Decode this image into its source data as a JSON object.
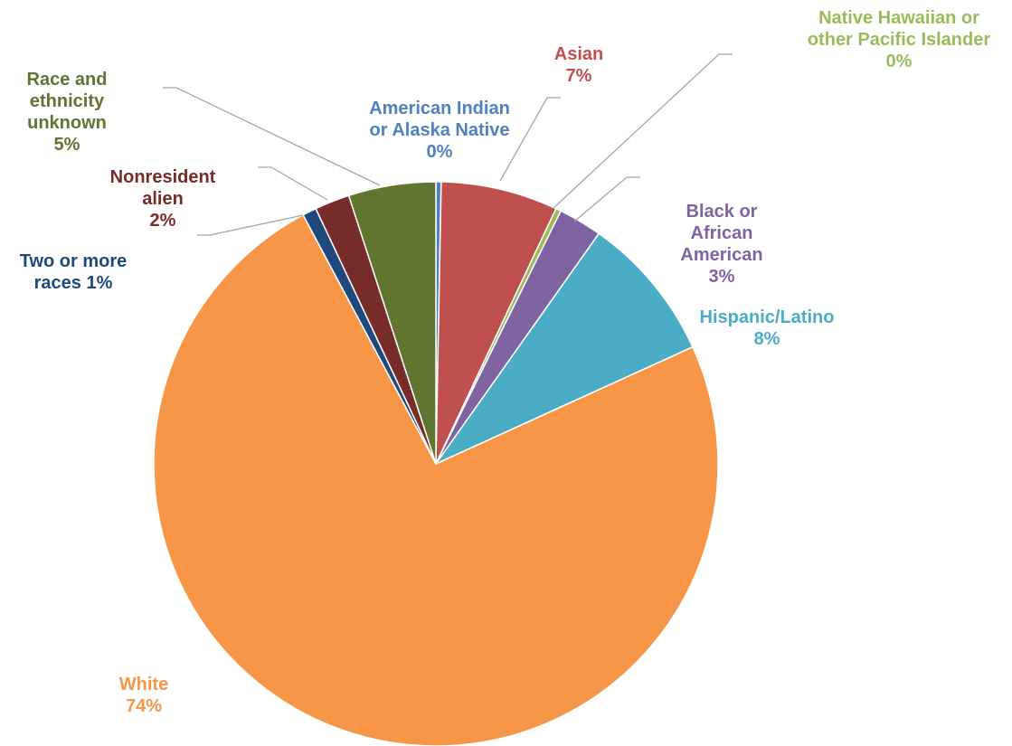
{
  "chart_data": {
    "type": "pie",
    "title": "",
    "legend": "none",
    "slices": [
      {
        "label": "American Indian or Alaska Native",
        "value": 0.3,
        "pct": "0%",
        "color": "#4F81BD",
        "label_lines": [
          "American Indian",
          "or Alaska Native",
          "0%"
        ]
      },
      {
        "label": "Asian",
        "value": 6.7,
        "pct": "7%",
        "color": "#C0504D",
        "label_lines": [
          "Asian",
          "7%"
        ]
      },
      {
        "label": "Native Hawaiian or other Pacific Islander",
        "value": 0.3,
        "pct": "0%",
        "color": "#9BBB59",
        "label_lines": [
          "Native Hawaiian or",
          "other Pacific Islander",
          "0%"
        ]
      },
      {
        "label": "Black or African American",
        "value": 2.5,
        "pct": "3%",
        "color": "#8064A2",
        "label_lines": [
          "Black or",
          "African",
          "American",
          "3%"
        ]
      },
      {
        "label": "Hispanic/Latino",
        "value": 8.4,
        "pct": "8%",
        "color": "#4BACC6",
        "label_lines": [
          "Hispanic/Latino",
          "8%"
        ]
      },
      {
        "label": "White",
        "value": 74.0,
        "pct": "74%",
        "color": "#F79646",
        "label_lines": [
          "White",
          "74%"
        ]
      },
      {
        "label": "Two or more races",
        "value": 0.8,
        "pct": "1%",
        "color": "#1F497D",
        "label_lines": [
          "Two or more",
          "races  1%"
        ]
      },
      {
        "label": "Nonresident alien",
        "value": 2.0,
        "pct": "2%",
        "color": "#772C2A",
        "label_lines": [
          "Nonresident",
          "alien",
          "2%"
        ]
      },
      {
        "label": "Race and ethnicity unknown",
        "value": 5.0,
        "pct": "5%",
        "color": "#5F7530",
        "label_lines": [
          "Race and",
          "ethnicity",
          "unknown",
          "5%"
        ]
      }
    ],
    "label_colors": {
      "American Indian or Alaska Native": "#4F81BD",
      "Asian": "#C0504D",
      "Native Hawaiian or other Pacific Islander": "#9BBB59",
      "Black or African American": "#8064A2",
      "Hispanic/Latino": "#4BACC6",
      "White": "#F79646",
      "Two or more races": "#1F497D",
      "Nonresident alien": "#772C2A",
      "Race and ethnicity unknown": "#5F7530"
    }
  }
}
